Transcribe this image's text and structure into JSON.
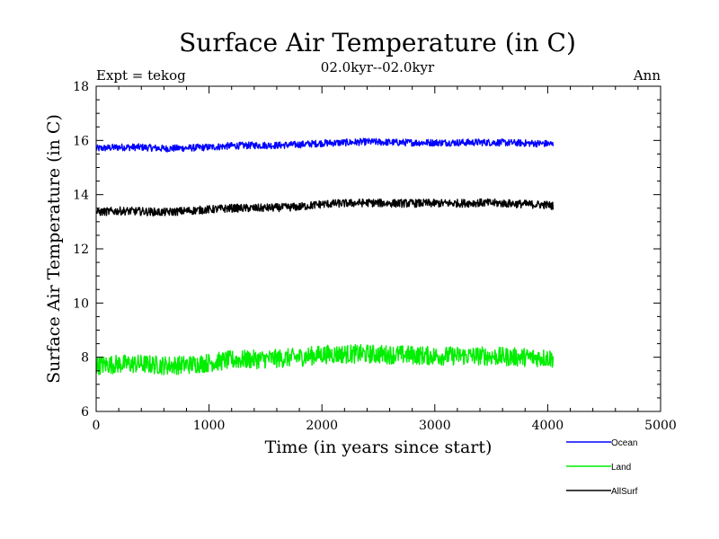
{
  "chart_data": {
    "type": "line",
    "title": "Surface Air Temperature (in C)",
    "subtitle": "02.0kyr--02.0kyr",
    "experiment_label": "Expt = tekog",
    "season_label": "Ann",
    "xlabel": "Time (in years since start)",
    "ylabel": "Surface Air Temperature (in C)",
    "xlim": [
      0,
      5000
    ],
    "ylim": [
      6,
      18
    ],
    "x_ticks": [
      0,
      1000,
      2000,
      3000,
      4000,
      5000
    ],
    "y_ticks": [
      6,
      8,
      10,
      12,
      14,
      16,
      18
    ],
    "x_tick_labels": [
      "0",
      "1000",
      "2000",
      "3000",
      "4000",
      "5000"
    ],
    "y_tick_labels": [
      "6",
      "8",
      "10",
      "12",
      "14",
      "16",
      "18"
    ],
    "grid": false,
    "legend_position": "bottom-right, below plot",
    "x": [
      0,
      200,
      400,
      600,
      800,
      1000,
      1200,
      1400,
      1600,
      1800,
      2000,
      2200,
      2400,
      2600,
      2800,
      3000,
      3200,
      3400,
      3600,
      3800,
      4000,
      4050
    ],
    "series": [
      {
        "name": "Ocean",
        "color": "#0000ff",
        "noise_amplitude": 0.13,
        "values": [
          15.7,
          15.75,
          15.75,
          15.7,
          15.72,
          15.75,
          15.8,
          15.82,
          15.82,
          15.85,
          15.9,
          15.92,
          15.95,
          15.93,
          15.92,
          15.92,
          15.92,
          15.93,
          15.92,
          15.9,
          15.88,
          15.85
        ]
      },
      {
        "name": "Land",
        "color": "#00ee00",
        "noise_amplitude": 0.35,
        "values": [
          7.7,
          7.75,
          7.75,
          7.7,
          7.72,
          7.8,
          7.9,
          7.92,
          7.95,
          8.0,
          8.1,
          8.12,
          8.12,
          8.1,
          8.08,
          8.05,
          8.05,
          8.05,
          8.02,
          8.0,
          7.98,
          7.95
        ]
      },
      {
        "name": "AllSurf",
        "color": "#000000",
        "noise_amplitude": 0.15,
        "values": [
          13.35,
          13.4,
          13.38,
          13.35,
          13.4,
          13.45,
          13.5,
          13.5,
          13.52,
          13.55,
          13.65,
          13.68,
          13.7,
          13.68,
          13.68,
          13.68,
          13.68,
          13.7,
          13.68,
          13.65,
          13.62,
          13.58
        ]
      }
    ]
  }
}
